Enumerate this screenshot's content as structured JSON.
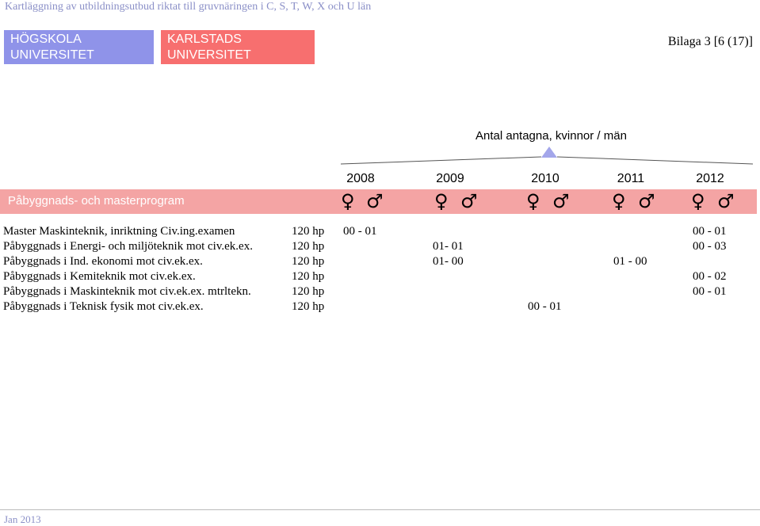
{
  "header": {
    "title": "Kartläggning av utbildningsutbud riktat till gruvnäringen i C, S, T, W, X och U län",
    "logo_left": [
      "HÖGSKOLA",
      "UNIVERSITET"
    ],
    "logo_right": [
      "KARLSTADS",
      "UNIVERSITET"
    ],
    "appendix": "Bilaga 3 [6 (17)]"
  },
  "caption": "Antal antagna, kvinnor / män",
  "years": [
    "2008",
    "2009",
    "2010",
    "2011",
    "2012"
  ],
  "section": {
    "label": "Påbyggnads- och masterprogram",
    "female_symbol": "♀",
    "male_symbol": "♂"
  },
  "rows": [
    {
      "name": "Master Maskinteknik, inriktning Civ.ing.examen",
      "hp": "120 hp",
      "values": {
        "2008": "00 - 01",
        "2012": "00 - 01"
      }
    },
    {
      "name": "Påbyggnads i Energi- och miljöteknik mot civ.ek.ex.",
      "hp": "120 hp",
      "values": {
        "2009": "01- 01",
        "2012": "00 - 03"
      }
    },
    {
      "name": "Påbyggnads i Ind. ekonomi mot civ.ek.ex.",
      "hp": "120 hp",
      "values": {
        "2009": "01- 00",
        "2011": "01 - 00"
      }
    },
    {
      "name": "Påbyggnads i Kemiteknik mot civ.ek.ex.",
      "hp": "120 hp",
      "values": {
        "2012": "00 - 02"
      }
    },
    {
      "name": "Påbyggnads i Maskinteknik mot civ.ek.ex. mtrltekn.",
      "hp": "120 hp",
      "values": {
        "2012": "00 - 01"
      }
    },
    {
      "name": "Påbyggnads i Teknisk fysik mot civ.ek.ex.",
      "hp": "120 hp",
      "values": {
        "2010": "00 - 01"
      }
    }
  ],
  "footer": "Jan 2013",
  "colors": {
    "logo_left": "#8f93e9",
    "logo_right": "#f76f6f",
    "band": "#f4a4a4",
    "accent_text": "#8a8fc7"
  }
}
